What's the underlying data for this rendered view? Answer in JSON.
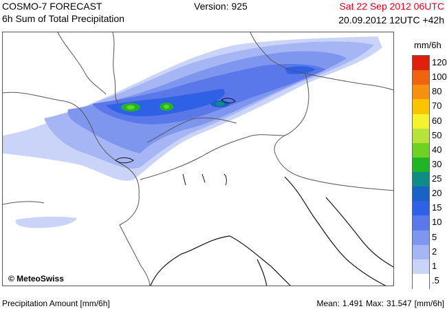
{
  "header": {
    "title": "COSMO-7 FORECAST",
    "subtitle": "6h Sum of Total Precipitation",
    "version": "Version: 925",
    "valid_time": "Sat 22 Sep 2012 06UTC",
    "run_time": "20.09.2012 12UTC +42h"
  },
  "map": {
    "copyright": "© MeteoSwiss",
    "background_color": "#ffffff"
  },
  "legend": {
    "unit": "mm/6h",
    "levels": [
      {
        "label": "120",
        "color": "#e0200f"
      },
      {
        "label": "100",
        "color": "#ee6410"
      },
      {
        "label": "80",
        "color": "#f59010"
      },
      {
        "label": "70",
        "color": "#fbc400"
      },
      {
        "label": "60",
        "color": "#f3f331"
      },
      {
        "label": "50",
        "color": "#b8e33b"
      },
      {
        "label": "40",
        "color": "#6dd224"
      },
      {
        "label": "30",
        "color": "#22b427"
      },
      {
        "label": "25",
        "color": "#0f8c86"
      },
      {
        "label": "20",
        "color": "#1a63c6"
      },
      {
        "label": "15",
        "color": "#2f61e6"
      },
      {
        "label": "10",
        "color": "#5a78ea"
      },
      {
        "label": "5",
        "color": "#7f96ef"
      },
      {
        "label": "2",
        "color": "#a6b5f3"
      },
      {
        "label": "1",
        "color": "#cad3f8"
      },
      {
        "label": ".5",
        "color": "#ffffff"
      }
    ]
  },
  "footer": {
    "amount_label": "Precipitation Amount [mm/6h]",
    "mean_label": "Mean:",
    "mean_value": "1.491",
    "max_label": "Max:",
    "max_value": "31.547",
    "unit": "[mm/6h]"
  }
}
